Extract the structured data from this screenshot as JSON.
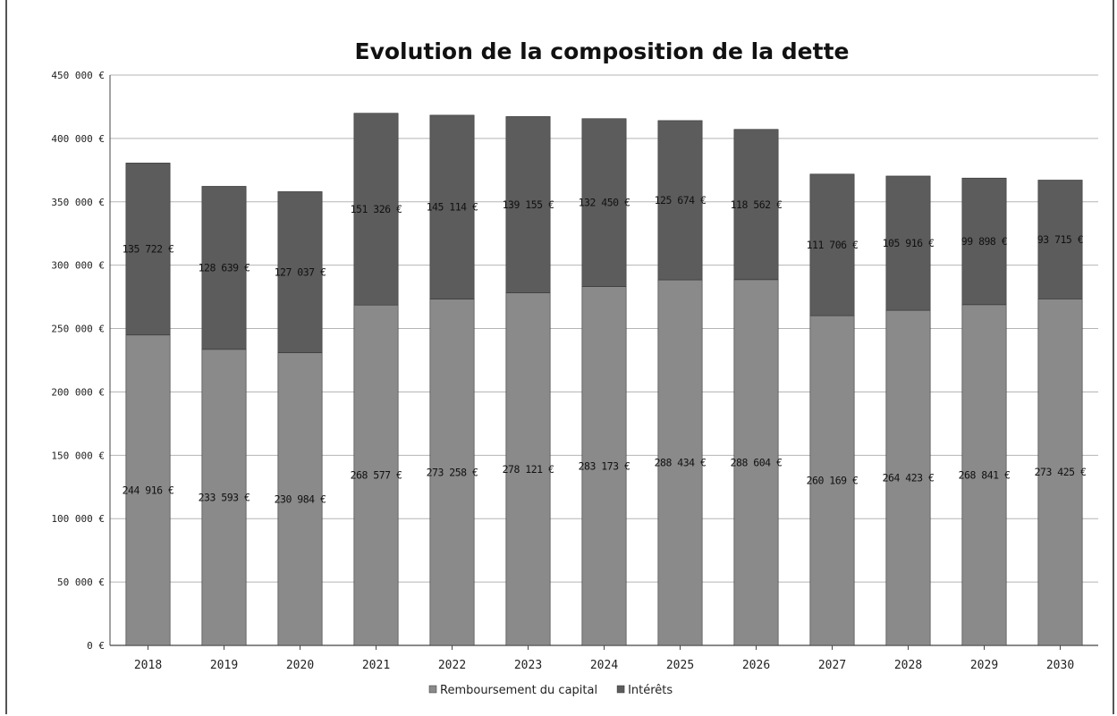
{
  "chart_data": {
    "type": "bar",
    "stacked": true,
    "title": "Evolution de la composition de la dette",
    "xlabel": "",
    "ylabel": "",
    "ylim": [
      0,
      450000
    ],
    "ytick_labels": [
      "0 €",
      "50 000 €",
      "100 000 €",
      "150 000 €",
      "200 000 €",
      "250 000 €",
      "300 000 €",
      "350 000 €",
      "400 000 €",
      "450 000 €"
    ],
    "grid": true,
    "legend_position": "bottom",
    "categories": [
      "2018",
      "2019",
      "2020",
      "2021",
      "2022",
      "2023",
      "2024",
      "2025",
      "2026",
      "2027",
      "2028",
      "2029",
      "2030"
    ],
    "series": [
      {
        "name": "Remboursement du capital",
        "color": "#8a8a8a",
        "values": [
          244916,
          233593,
          230984,
          268577,
          273258,
          278121,
          283173,
          288434,
          288604,
          260169,
          264423,
          268841,
          273425
        ],
        "labels": [
          "244 916 €",
          "233 593 €",
          "230 984 €",
          "268 577 €",
          "273 258 €",
          "278 121 €",
          "283 173 €",
          "288 434 €",
          "288 604 €",
          "260 169 €",
          "264 423 €",
          "268 841 €",
          "273 425 €"
        ]
      },
      {
        "name": "Intérêts",
        "color": "#5c5c5c",
        "values": [
          135722,
          128639,
          127037,
          151326,
          145114,
          139155,
          132450,
          125674,
          118562,
          111706,
          105916,
          99898,
          93715
        ],
        "labels": [
          "135 722 €",
          "128 639 €",
          "127 037 €",
          "151 326 €",
          "145 114 €",
          "139 155 €",
          "132 450 €",
          "125 674 €",
          "118 562 €",
          "111 706 €",
          "105 916 €",
          "99 898 €",
          "93 715 €"
        ]
      }
    ]
  }
}
